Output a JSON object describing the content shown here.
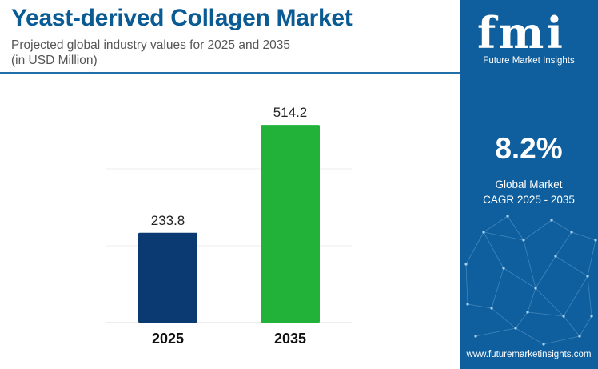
{
  "header": {
    "title": "Yeast-derived Collagen Market",
    "subtitle_line1": "Projected global industry values for 2025 and 2035",
    "subtitle_line2": "(in USD Million)"
  },
  "chart_data": {
    "type": "bar",
    "categories": [
      "2025",
      "2035"
    ],
    "values": [
      233.8,
      514.2
    ],
    "value_labels": [
      "233.8",
      "514.2"
    ],
    "bar_colors": [
      "#0b3a73",
      "#22b23a"
    ],
    "ylim": [
      0,
      600
    ],
    "grid": true,
    "xlabel": "",
    "ylabel": ""
  },
  "sidebar": {
    "logo_text": "fmi",
    "logo_caption": "Future Market Insights",
    "logo_icon": "fmi-brand-logo",
    "cagr_value": "8.2%",
    "cagr_label_line1": "Global Market",
    "cagr_label_line2": "CAGR 2025 - 2035",
    "website": "www.futuremarketinsights.com",
    "background_color": "#0f5f9e"
  }
}
